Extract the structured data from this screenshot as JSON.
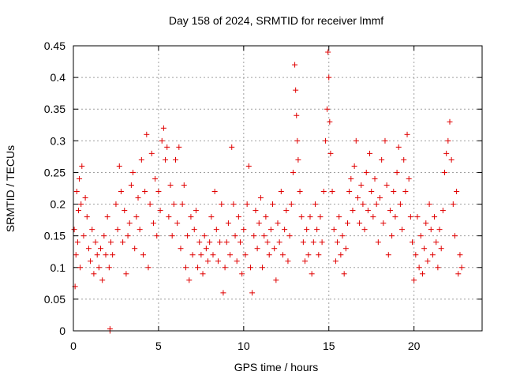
{
  "chart_data": {
    "type": "scatter",
    "title": "Day 158 of 2024, SRMTID for receiver lmmf",
    "xlabel": "GPS time / hours",
    "ylabel": "SRMTID / TECUs",
    "xlim": [
      0,
      24
    ],
    "ylim": [
      0,
      0.45
    ],
    "x_ticks": [
      0,
      5,
      10,
      15,
      20
    ],
    "x_tick_labels": [
      "0",
      "5",
      "10",
      "15",
      "20"
    ],
    "y_ticks": [
      0,
      0.05,
      0.1,
      0.15,
      0.2,
      0.25,
      0.3,
      0.35,
      0.4,
      0.45
    ],
    "y_tick_labels": [
      "0",
      "0.05",
      "0.1",
      "0.15",
      "0.2",
      "0.25",
      "0.3",
      "0.35",
      "0.4",
      "0.45"
    ],
    "grid": true,
    "marker": "+",
    "color": "#e00000",
    "series": [
      {
        "name": "SRMTID",
        "points": [
          [
            0.05,
            0.16
          ],
          [
            0.1,
            0.07
          ],
          [
            0.15,
            0.12
          ],
          [
            0.2,
            0.22
          ],
          [
            0.25,
            0.14
          ],
          [
            0.3,
            0.19
          ],
          [
            0.35,
            0.24
          ],
          [
            0.4,
            0.1
          ],
          [
            0.45,
            0.2
          ],
          [
            0.5,
            0.26
          ],
          [
            0.6,
            0.15
          ],
          [
            0.7,
            0.21
          ],
          [
            0.8,
            0.18
          ],
          [
            0.9,
            0.13
          ],
          [
            1.0,
            0.11
          ],
          [
            1.1,
            0.16
          ],
          [
            1.2,
            0.09
          ],
          [
            1.3,
            0.14
          ],
          [
            1.4,
            0.12
          ],
          [
            1.5,
            0.1
          ],
          [
            1.6,
            0.13
          ],
          [
            1.7,
            0.08
          ],
          [
            1.8,
            0.15
          ],
          [
            1.9,
            0.12
          ],
          [
            2.0,
            0.18
          ],
          [
            2.1,
            0.1
          ],
          [
            2.2,
            0.14
          ],
          [
            2.3,
            0.12
          ],
          [
            2.5,
            0.2
          ],
          [
            2.6,
            0.16
          ],
          [
            2.7,
            0.26
          ],
          [
            2.8,
            0.22
          ],
          [
            2.9,
            0.14
          ],
          [
            3.0,
            0.19
          ],
          [
            3.1,
            0.09
          ],
          [
            3.2,
            0.15
          ],
          [
            3.3,
            0.17
          ],
          [
            3.4,
            0.23
          ],
          [
            3.5,
            0.25
          ],
          [
            3.6,
            0.13
          ],
          [
            3.7,
            0.18
          ],
          [
            3.8,
            0.21
          ],
          [
            3.9,
            0.16
          ],
          [
            4.0,
            0.27
          ],
          [
            4.1,
            0.12
          ],
          [
            4.2,
            0.22
          ],
          [
            4.3,
            0.31
          ],
          [
            4.4,
            0.1
          ],
          [
            4.5,
            0.2
          ],
          [
            4.6,
            0.28
          ],
          [
            4.7,
            0.17
          ],
          [
            4.8,
            0.24
          ],
          [
            4.9,
            0.15
          ],
          [
            5.0,
            0.22
          ],
          [
            5.1,
            0.19
          ],
          [
            5.2,
            0.3
          ],
          [
            5.3,
            0.32
          ],
          [
            5.4,
            0.27
          ],
          [
            5.5,
            0.29
          ],
          [
            5.6,
            0.18
          ],
          [
            5.7,
            0.23
          ],
          [
            5.8,
            0.15
          ],
          [
            5.9,
            0.2
          ],
          [
            6.0,
            0.27
          ],
          [
            6.1,
            0.17
          ],
          [
            6.2,
            0.29
          ],
          [
            6.3,
            0.13
          ],
          [
            6.4,
            0.2
          ],
          [
            6.5,
            0.23
          ],
          [
            6.6,
            0.1
          ],
          [
            6.7,
            0.15
          ],
          [
            6.8,
            0.08
          ],
          [
            6.9,
            0.18
          ],
          [
            7.0,
            0.12
          ],
          [
            7.1,
            0.16
          ],
          [
            7.2,
            0.19
          ],
          [
            7.3,
            0.1
          ],
          [
            7.4,
            0.14
          ],
          [
            7.5,
            0.12
          ],
          [
            7.6,
            0.09
          ],
          [
            7.7,
            0.15
          ],
          [
            7.8,
            0.13
          ],
          [
            7.9,
            0.11
          ],
          [
            8.0,
            0.14
          ],
          [
            8.1,
            0.18
          ],
          [
            8.2,
            0.12
          ],
          [
            8.3,
            0.22
          ],
          [
            8.4,
            0.16
          ],
          [
            8.5,
            0.11
          ],
          [
            8.6,
            0.14
          ],
          [
            8.7,
            0.2
          ],
          [
            8.8,
            0.06
          ],
          [
            8.9,
            0.1
          ],
          [
            9.0,
            0.14
          ],
          [
            9.1,
            0.17
          ],
          [
            9.2,
            0.12
          ],
          [
            9.3,
            0.29
          ],
          [
            9.4,
            0.2
          ],
          [
            9.5,
            0.15
          ],
          [
            9.6,
            0.11
          ],
          [
            9.7,
            0.18
          ],
          [
            9.8,
            0.14
          ],
          [
            9.9,
            0.09
          ],
          [
            10.0,
            0.16
          ],
          [
            10.1,
            0.12
          ],
          [
            10.2,
            0.2
          ],
          [
            10.3,
            0.26
          ],
          [
            10.4,
            0.1
          ],
          [
            10.5,
            0.06
          ],
          [
            10.6,
            0.15
          ],
          [
            10.7,
            0.19
          ],
          [
            10.8,
            0.13
          ],
          [
            10.9,
            0.17
          ],
          [
            11.0,
            0.21
          ],
          [
            11.1,
            0.1
          ],
          [
            11.2,
            0.15
          ],
          [
            11.3,
            0.18
          ],
          [
            11.4,
            0.14
          ],
          [
            11.5,
            0.12
          ],
          [
            11.6,
            0.16
          ],
          [
            11.7,
            0.2
          ],
          [
            11.8,
            0.13
          ],
          [
            11.9,
            0.08
          ],
          [
            12.0,
            0.17
          ],
          [
            12.1,
            0.14
          ],
          [
            12.2,
            0.22
          ],
          [
            12.3,
            0.12
          ],
          [
            12.4,
            0.16
          ],
          [
            12.5,
            0.19
          ],
          [
            12.6,
            0.11
          ],
          [
            12.7,
            0.15
          ],
          [
            12.8,
            0.2
          ],
          [
            12.9,
            0.25
          ],
          [
            13.0,
            0.42
          ],
          [
            13.05,
            0.38
          ],
          [
            13.1,
            0.34
          ],
          [
            13.15,
            0.3
          ],
          [
            13.2,
            0.27
          ],
          [
            13.3,
            0.22
          ],
          [
            13.4,
            0.18
          ],
          [
            13.5,
            0.14
          ],
          [
            13.6,
            0.11
          ],
          [
            13.7,
            0.16
          ],
          [
            13.8,
            0.12
          ],
          [
            13.9,
            0.18
          ],
          [
            14.0,
            0.09
          ],
          [
            14.1,
            0.14
          ],
          [
            14.2,
            0.2
          ],
          [
            14.3,
            0.16
          ],
          [
            14.4,
            0.12
          ],
          [
            14.5,
            0.18
          ],
          [
            14.6,
            0.14
          ],
          [
            14.7,
            0.22
          ],
          [
            14.8,
            0.3
          ],
          [
            14.9,
            0.35
          ],
          [
            14.95,
            0.44
          ],
          [
            15.0,
            0.4
          ],
          [
            15.05,
            0.33
          ],
          [
            15.1,
            0.28
          ],
          [
            15.2,
            0.22
          ],
          [
            15.3,
            0.16
          ],
          [
            15.4,
            0.11
          ],
          [
            15.5,
            0.14
          ],
          [
            15.6,
            0.18
          ],
          [
            15.7,
            0.12
          ],
          [
            15.8,
            0.15
          ],
          [
            15.9,
            0.09
          ],
          [
            16.0,
            0.13
          ],
          [
            16.1,
            0.17
          ],
          [
            16.2,
            0.22
          ],
          [
            16.3,
            0.24
          ],
          [
            16.4,
            0.19
          ],
          [
            16.5,
            0.26
          ],
          [
            16.6,
            0.3
          ],
          [
            16.7,
            0.21
          ],
          [
            16.8,
            0.17
          ],
          [
            16.9,
            0.23
          ],
          [
            17.0,
            0.2
          ],
          [
            17.1,
            0.16
          ],
          [
            17.2,
            0.25
          ],
          [
            17.3,
            0.19
          ],
          [
            17.4,
            0.28
          ],
          [
            17.5,
            0.22
          ],
          [
            17.6,
            0.18
          ],
          [
            17.7,
            0.24
          ],
          [
            17.8,
            0.2
          ],
          [
            17.9,
            0.14
          ],
          [
            18.0,
            0.21
          ],
          [
            18.1,
            0.27
          ],
          [
            18.2,
            0.17
          ],
          [
            18.3,
            0.3
          ],
          [
            18.4,
            0.23
          ],
          [
            18.5,
            0.12
          ],
          [
            18.6,
            0.19
          ],
          [
            18.7,
            0.15
          ],
          [
            18.8,
            0.22
          ],
          [
            18.9,
            0.18
          ],
          [
            19.0,
            0.25
          ],
          [
            19.1,
            0.29
          ],
          [
            19.2,
            0.2
          ],
          [
            19.3,
            0.16
          ],
          [
            19.4,
            0.27
          ],
          [
            19.5,
            0.22
          ],
          [
            19.6,
            0.31
          ],
          [
            19.7,
            0.24
          ],
          [
            19.8,
            0.18
          ],
          [
            19.9,
            0.14
          ],
          [
            20.0,
            0.08
          ],
          [
            20.1,
            0.12
          ],
          [
            20.2,
            0.18
          ],
          [
            20.3,
            0.1
          ],
          [
            20.4,
            0.15
          ],
          [
            20.5,
            0.09
          ],
          [
            20.6,
            0.13
          ],
          [
            20.7,
            0.17
          ],
          [
            20.8,
            0.11
          ],
          [
            20.9,
            0.2
          ],
          [
            21.0,
            0.16
          ],
          [
            21.1,
            0.12
          ],
          [
            21.2,
            0.18
          ],
          [
            21.3,
            0.14
          ],
          [
            21.4,
            0.1
          ],
          [
            21.5,
            0.16
          ],
          [
            21.6,
            0.13
          ],
          [
            21.7,
            0.19
          ],
          [
            21.8,
            0.25
          ],
          [
            21.9,
            0.28
          ],
          [
            22.0,
            0.3
          ],
          [
            22.1,
            0.33
          ],
          [
            22.2,
            0.27
          ],
          [
            22.3,
            0.2
          ],
          [
            22.4,
            0.15
          ],
          [
            22.5,
            0.22
          ],
          [
            22.6,
            0.09
          ],
          [
            22.7,
            0.12
          ],
          [
            22.8,
            0.1
          ],
          [
            2.15,
            0.0
          ],
          [
            2.15,
            0.003
          ]
        ]
      }
    ]
  }
}
